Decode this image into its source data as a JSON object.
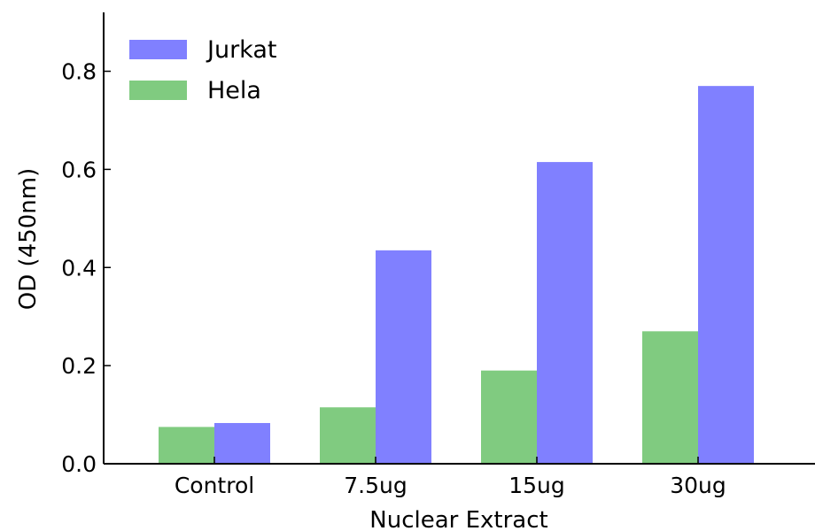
{
  "chart_data": {
    "type": "bar",
    "title": "",
    "xlabel": "Nuclear Extract",
    "ylabel": "OD (450nm)",
    "categories": [
      "Control",
      "7.5ug",
      "15ug",
      "30ug"
    ],
    "series": [
      {
        "name": "Hela",
        "color": "#80cb80",
        "values": [
          0.075,
          0.115,
          0.19,
          0.27
        ]
      },
      {
        "name": "Jurkat",
        "color": "#8080ff",
        "values": [
          0.083,
          0.435,
          0.615,
          0.77
        ]
      }
    ],
    "legend_order": [
      "Jurkat",
      "Hela"
    ],
    "ylim": [
      0,
      0.92
    ],
    "yticks": [
      "0.0",
      "0.2",
      "0.4",
      "0.6",
      "0.8"
    ],
    "legend_position": "top-left",
    "grid": false
  }
}
